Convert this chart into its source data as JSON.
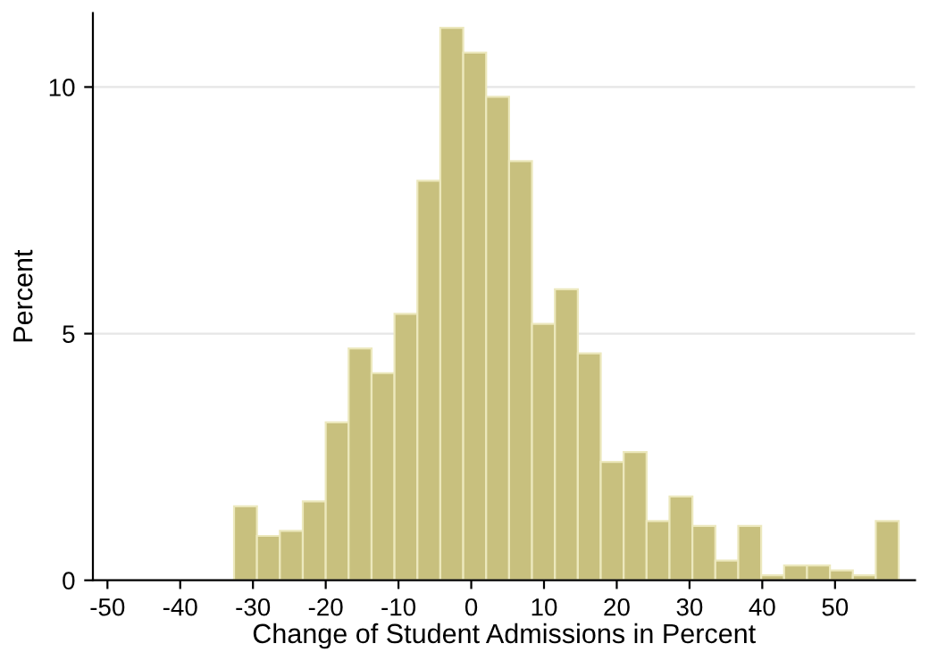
{
  "chart_data": {
    "type": "histogram",
    "xlabel": "Change of Student Admissions in Percent",
    "ylabel": "Percent",
    "bins": [
      -32.6,
      -29.45,
      -26.3,
      -23.15,
      -20,
      -16.85,
      -13.7,
      -10.55,
      -7.4,
      -4.25,
      -1.1,
      2.05,
      5.2,
      8.35,
      11.5,
      14.65,
      17.8,
      20.95,
      24.1,
      27.25,
      30.4,
      33.55,
      36.7,
      39.85,
      43,
      46.15,
      49.3,
      52.45,
      55.6,
      58.75
    ],
    "values": [
      1.5,
      0.9,
      1.0,
      1.6,
      3.2,
      4.7,
      4.2,
      5.4,
      8.1,
      11.2,
      10.7,
      9.8,
      8.5,
      5.2,
      5.9,
      4.6,
      2.4,
      2.6,
      1.2,
      1.7,
      1.1,
      0.4,
      1.1,
      0.1,
      0.3,
      0.3,
      0.2,
      0.1,
      1.2
    ],
    "color": "#c8c07e",
    "xlim": [
      -52,
      61
    ],
    "ylim": [
      0,
      11.5
    ],
    "xticks": [
      -50,
      -40,
      -30,
      -20,
      -10,
      0,
      10,
      20,
      30,
      40,
      50
    ],
    "yticks": [
      0,
      5,
      10
    ],
    "grid": "y"
  }
}
